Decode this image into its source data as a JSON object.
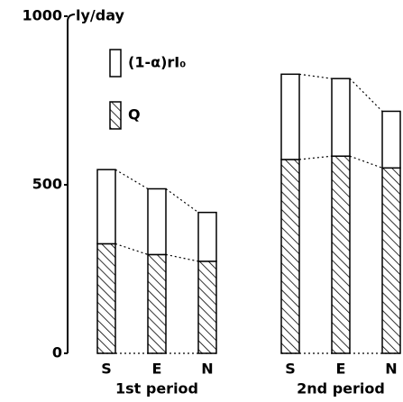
{
  "chart_data": {
    "type": "bar",
    "stacked": true,
    "y_label": "ly/day",
    "groups": [
      "1st period",
      "2nd period"
    ],
    "categories": [
      "S",
      "E",
      "N"
    ],
    "series": [
      {
        "name": "Q",
        "hatch": true,
        "color": "#000000",
        "values": [
          [
            325,
            293,
            273
          ],
          [
            575,
            585,
            550
          ]
        ]
      },
      {
        "name": "(1-α)rI₀",
        "hatch": false,
        "color": "#ffffff",
        "values": [
          [
            220,
            195,
            145
          ],
          [
            253,
            230,
            168
          ]
        ]
      }
    ],
    "ylim": [
      0,
      1000
    ],
    "yticks": [
      0,
      500,
      1000
    ]
  }
}
